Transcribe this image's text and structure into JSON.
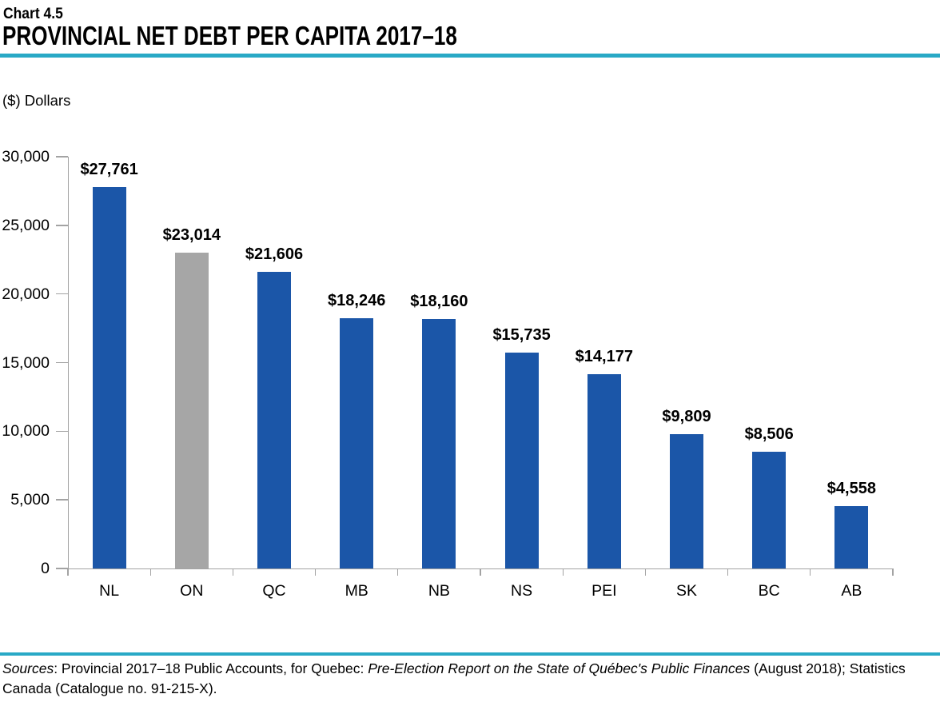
{
  "header": {
    "chart_number": "Chart 4.5",
    "title": "PROVINCIAL NET DEBT PER CAPITA 2017–18"
  },
  "colors": {
    "accent_teal": "#29A9C6",
    "bar_blue": "#1B56A8",
    "bar_gray": "#A6A6A6",
    "axis_gray": "#A3A3A3",
    "text_black": "#000000"
  },
  "chart_data": {
    "type": "bar",
    "title": "PROVINCIAL NET DEBT PER CAPITA 2017–18",
    "ylabel": "($) Dollars",
    "xlabel": "",
    "categories": [
      "NL",
      "ON",
      "QC",
      "MB",
      "NB",
      "NS",
      "PEI",
      "SK",
      "BC",
      "AB"
    ],
    "values": [
      27761,
      23014,
      21606,
      18246,
      18160,
      15735,
      14177,
      9809,
      8506,
      4558
    ],
    "data_labels": [
      "$27,761",
      "$23,014",
      "$21,606",
      "$18,246",
      "$18,160",
      "$15,735",
      "$14,177",
      "$9,809",
      "$8,506",
      "$4,558"
    ],
    "bar_colors": [
      "#1B56A8",
      "#A6A6A6",
      "#1B56A8",
      "#1B56A8",
      "#1B56A8",
      "#1B56A8",
      "#1B56A8",
      "#1B56A8",
      "#1B56A8",
      "#1B56A8"
    ],
    "highlighted_category": "ON",
    "ylim": [
      0,
      30000
    ],
    "ytick_values": [
      0,
      5000,
      10000,
      15000,
      20000,
      25000,
      30000
    ],
    "ytick_labels": [
      "0",
      "5,000",
      "10,000",
      "15,000",
      "20,000",
      "25,000",
      "30,000"
    ],
    "grid": false,
    "legend": "none"
  },
  "footer": {
    "segments": [
      {
        "text": "Sources",
        "italic": true
      },
      {
        "text": ": Provincial 2017–18 Public Accounts, for Quebec: ",
        "italic": false
      },
      {
        "text": "Pre-Election Report on the State of Québec's Public Finances",
        "italic": true
      },
      {
        "text": " (August 2018); Statistics",
        "italic": false
      },
      {
        "br": true
      },
      {
        "text": "Canada (Catalogue no. 91-215-X).",
        "italic": false
      }
    ]
  }
}
